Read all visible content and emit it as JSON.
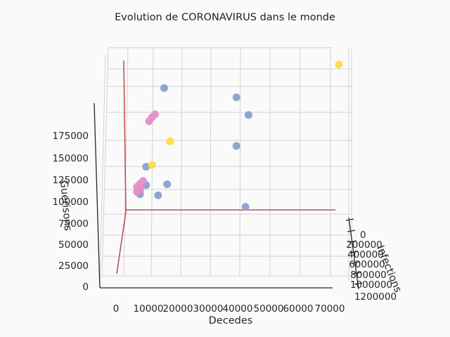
{
  "chart_data": {
    "type": "scatter",
    "projection": "3d",
    "title": "Evolution de CORONAVIRUS dans le monde",
    "xlabel": "Decedes",
    "ylabel": "Infections",
    "zlabel": "Guerisons",
    "x_ticks": [
      "0",
      "10000",
      "20000",
      "30000",
      "40000",
      "50000",
      "60000",
      "70000"
    ],
    "y_ticks": [
      "0",
      "200000",
      "400000",
      "600000",
      "800000",
      "1000000",
      "1200000"
    ],
    "z_ticks": [
      "0",
      "25000",
      "50000",
      "75000",
      "100000",
      "125000",
      "150000",
      "175000"
    ],
    "xlim": [
      0,
      70000
    ],
    "ylim": [
      0,
      1200000
    ],
    "zlim": [
      0,
      190000
    ],
    "grid": true,
    "series": [
      {
        "color": "#8c9fcc",
        "points": [
          {
            "x": 12000,
            "y": 1180000,
            "z": 189000
          },
          {
            "x": 36000,
            "y": 1180000,
            "z": 180000
          },
          {
            "x": 40000,
            "y": 1200000,
            "z": 163000
          },
          {
            "x": 36000,
            "y": 1180000,
            "z": 133000
          },
          {
            "x": 39000,
            "y": 260000,
            "z": 71000
          },
          {
            "x": 6000,
            "y": 330000,
            "z": 110000
          },
          {
            "x": 13000,
            "y": 300000,
            "z": 93000
          },
          {
            "x": 6000,
            "y": 250000,
            "z": 92000
          },
          {
            "x": 10000,
            "y": 220000,
            "z": 82000
          },
          {
            "x": 4000,
            "y": 200000,
            "z": 83000
          },
          {
            "x": 4000,
            "y": 150000,
            "z": 87000
          },
          {
            "x": 3000,
            "y": 120000,
            "z": 85000
          }
        ]
      },
      {
        "color": "#fedb44",
        "points": [
          {
            "x": 70000,
            "y": 1250000,
            "z": 212000
          },
          {
            "x": 14000,
            "y": 750000,
            "z": 136000
          },
          {
            "x": 8000,
            "y": 400000,
            "z": 112000
          }
        ]
      },
      {
        "color": "#e58fc8",
        "points": [
          {
            "x": 9000,
            "y": 1000000,
            "z": 163000
          },
          {
            "x": 8000,
            "y": 950000,
            "z": 160000
          },
          {
            "x": 7000,
            "y": 900000,
            "z": 156000
          },
          {
            "x": 5000,
            "y": 220000,
            "z": 96000
          },
          {
            "x": 4000,
            "y": 180000,
            "z": 93000
          },
          {
            "x": 3000,
            "y": 150000,
            "z": 90000
          },
          {
            "x": 4000,
            "y": 120000,
            "z": 87000
          },
          {
            "x": 3000,
            "y": 100000,
            "z": 85000
          }
        ]
      }
    ]
  }
}
